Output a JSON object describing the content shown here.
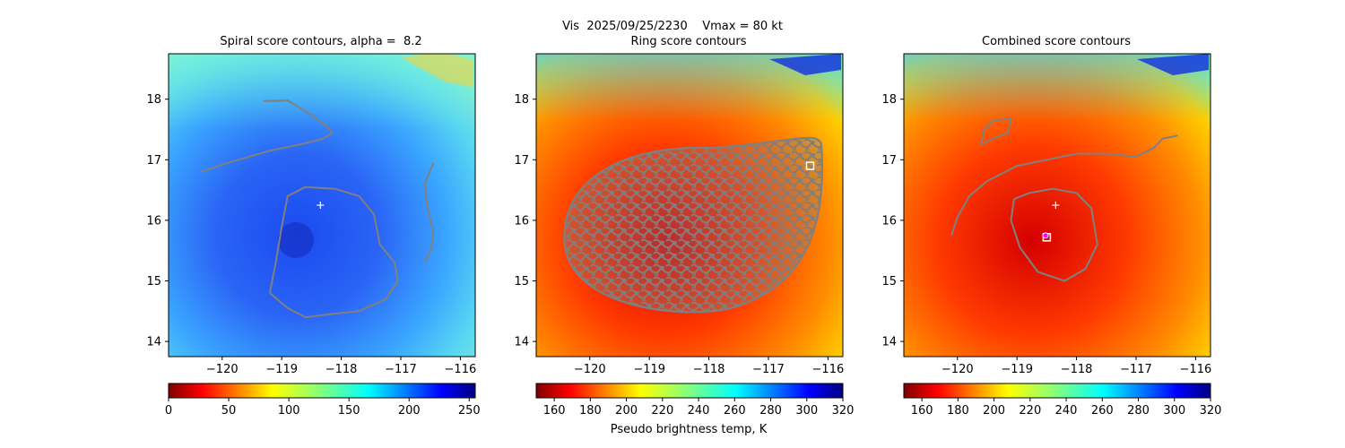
{
  "figure": {
    "suptitle": "Vis  2025/09/25/2230    Vmax = 80 kt",
    "colorbar_label": "Pseudo brightness temp, K"
  },
  "chart_data": [
    {
      "type": "heatmap",
      "title": "Spiral score contours, alpha =  8.2",
      "colormap": "jet_r",
      "xlim": [
        -120.9,
        -115.75
      ],
      "ylim": [
        13.75,
        18.75
      ],
      "xticks": [
        -120,
        -119,
        -118,
        -117,
        -116
      ],
      "yticks": [
        14,
        15,
        16,
        17,
        18
      ],
      "colorbar": {
        "range": [
          0,
          255
        ],
        "ticks": [
          0,
          50,
          100,
          150,
          200,
          250
        ]
      },
      "center_marker": {
        "lon": -118.35,
        "lat": 16.25,
        "symbol": "+"
      },
      "contours": [
        {
          "name": "spiral-band-outer",
          "points": [
            [
              -120.35,
              16.8
            ],
            [
              -119.9,
              16.95
            ],
            [
              -119.2,
              17.15
            ],
            [
              -118.7,
              17.25
            ],
            [
              -118.3,
              17.35
            ],
            [
              -118.15,
              17.45
            ],
            [
              -118.3,
              17.6
            ],
            [
              -118.6,
              17.8
            ],
            [
              -118.9,
              17.98
            ],
            [
              -119.3,
              17.97
            ],
            [
              -119.0,
              17.97
            ]
          ]
        },
        {
          "name": "eyewall-ring",
          "points": [
            [
              -119.2,
              14.8
            ],
            [
              -119.1,
              15.3
            ],
            [
              -119.0,
              15.9
            ],
            [
              -118.9,
              16.4
            ],
            [
              -118.6,
              16.55
            ],
            [
              -118.1,
              16.52
            ],
            [
              -117.7,
              16.4
            ],
            [
              -117.45,
              16.1
            ],
            [
              -117.35,
              15.6
            ],
            [
              -117.1,
              15.3
            ],
            [
              -117.05,
              15.0
            ],
            [
              -117.25,
              14.7
            ],
            [
              -117.7,
              14.5
            ],
            [
              -118.2,
              14.45
            ],
            [
              -118.6,
              14.4
            ],
            [
              -118.9,
              14.55
            ],
            [
              -119.2,
              14.8
            ]
          ]
        },
        {
          "name": "east-band",
          "points": [
            [
              -116.45,
              16.95
            ],
            [
              -116.6,
              16.6
            ],
            [
              -116.55,
              16.2
            ],
            [
              -116.45,
              15.8
            ],
            [
              -116.5,
              15.5
            ],
            [
              -116.6,
              15.3
            ]
          ]
        }
      ]
    },
    {
      "type": "heatmap",
      "title": "Ring score contours",
      "colormap": "jet_r",
      "xlim": [
        -120.9,
        -115.75
      ],
      "ylim": [
        13.75,
        18.75
      ],
      "xticks": [
        -120,
        -119,
        -118,
        -117,
        -116
      ],
      "yticks": [
        14,
        15,
        16,
        17,
        18
      ],
      "colorbar": {
        "range": [
          150,
          320
        ],
        "ticks": [
          160,
          180,
          200,
          220,
          240,
          260,
          280,
          300,
          320
        ]
      },
      "square_marker": {
        "lon": -116.3,
        "lat": 16.9
      },
      "contour_field": {
        "name": "dense-ring-score-region",
        "lon_range": [
          -120.5,
          -116.05
        ],
        "lat_range": [
          14.45,
          17.4
        ]
      }
    },
    {
      "type": "heatmap",
      "title": "Combined score contours",
      "colormap": "jet_r",
      "xlim": [
        -120.9,
        -115.75
      ],
      "ylim": [
        13.75,
        18.75
      ],
      "xticks": [
        -120,
        -119,
        -118,
        -117,
        -116
      ],
      "yticks": [
        14,
        15,
        16,
        17,
        18
      ],
      "colorbar": {
        "range": [
          150,
          320
        ],
        "ticks": [
          160,
          180,
          200,
          220,
          240,
          260,
          280,
          300,
          320
        ]
      },
      "center_marker": {
        "lon": -118.35,
        "lat": 16.25,
        "symbol": "+"
      },
      "square_marker": {
        "lon": -118.5,
        "lat": 15.72
      },
      "circle_marker": {
        "lon": -118.52,
        "lat": 15.75,
        "color": "#ff00ff"
      },
      "contours": [
        {
          "name": "northwest-small-loop",
          "points": [
            [
              -119.6,
              17.25
            ],
            [
              -119.55,
              17.5
            ],
            [
              -119.4,
              17.65
            ],
            [
              -119.1,
              17.68
            ],
            [
              -119.15,
              17.45
            ],
            [
              -119.4,
              17.35
            ],
            [
              -119.6,
              17.25
            ]
          ]
        },
        {
          "name": "combined-band",
          "points": [
            [
              -120.1,
              15.75
            ],
            [
              -120.0,
              16.05
            ],
            [
              -119.8,
              16.4
            ],
            [
              -119.5,
              16.65
            ],
            [
              -119.0,
              16.9
            ],
            [
              -118.5,
              17.0
            ],
            [
              -118.0,
              17.1
            ],
            [
              -117.5,
              17.1
            ],
            [
              -117.0,
              17.05
            ],
            [
              -116.7,
              17.2
            ],
            [
              -116.55,
              17.35
            ],
            [
              -116.3,
              17.4
            ]
          ]
        },
        {
          "name": "inner-core-ring",
          "points": [
            [
              -119.05,
              16.35
            ],
            [
              -118.8,
              16.45
            ],
            [
              -118.4,
              16.52
            ],
            [
              -118.0,
              16.45
            ],
            [
              -117.75,
              16.2
            ],
            [
              -117.65,
              15.6
            ],
            [
              -117.85,
              15.2
            ],
            [
              -118.2,
              15.0
            ],
            [
              -118.65,
              15.15
            ],
            [
              -118.95,
              15.55
            ],
            [
              -119.1,
              16.0
            ],
            [
              -119.05,
              16.35
            ]
          ]
        }
      ]
    }
  ]
}
